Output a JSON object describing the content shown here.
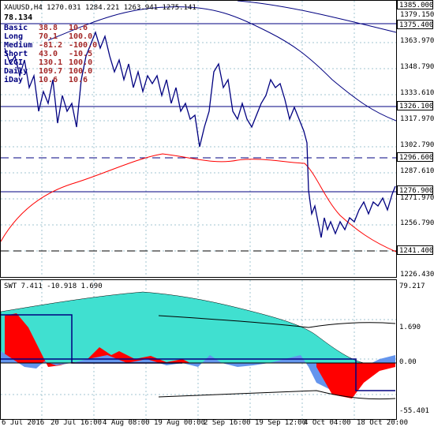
{
  "chart": {
    "header": "XAUUSD,H4  1270.031 1284.221 1263.941 1275.141",
    "value_label": "78.134",
    "info_rows": [
      {
        "label": "Basic",
        "v1": "38.8",
        "v2": "10.6"
      },
      {
        "label": "Long",
        "v1": "70.1",
        "v2": "100.0"
      },
      {
        "label": "Medium",
        "v1": "-81.2",
        "v2": "-100.0"
      },
      {
        "label": "Short",
        "v1": "43.0",
        "v2": "-10.5"
      },
      {
        "label": "LCGI",
        "v1": "130.1",
        "v2": "100.0"
      },
      {
        "label": "Daily",
        "v1": "109.7",
        "v2": "100.0"
      },
      {
        "label": "iDay",
        "v1": "10.6",
        "v2": "10.6"
      }
    ],
    "price_axis": [
      "1385.000",
      "1379.150",
      "1375.400",
      "1363.970",
      "1348.790",
      "1333.610",
      "1326.100",
      "1317.970",
      "1302.790",
      "1296.600",
      "1287.610",
      "1276.900",
      "1271.970",
      "1256.790",
      "1241.400",
      "1226.430"
    ],
    "time_axis": [
      "6 Jul 2016",
      "20 Jul 16:00",
      "4 Aug 08:00",
      "19 Aug 00:00",
      "2 Sep 16:00",
      "19 Sep 12:00",
      "4 Oct 04:00",
      "18 Oct 20:00"
    ],
    "colors": {
      "price": "#000080",
      "ma": "#ff0000",
      "envelope": "#000080",
      "level": "#000080",
      "cyan": "#40e0d0",
      "red": "#ff0000",
      "blue": "#6495ed",
      "grid": "#a0c4d0"
    }
  },
  "indicator": {
    "header": "SWT  7.411 -10.918 1.690",
    "axis": [
      "79.217",
      "0.00",
      "-55.401"
    ],
    "axis_mid": "1.690"
  }
}
